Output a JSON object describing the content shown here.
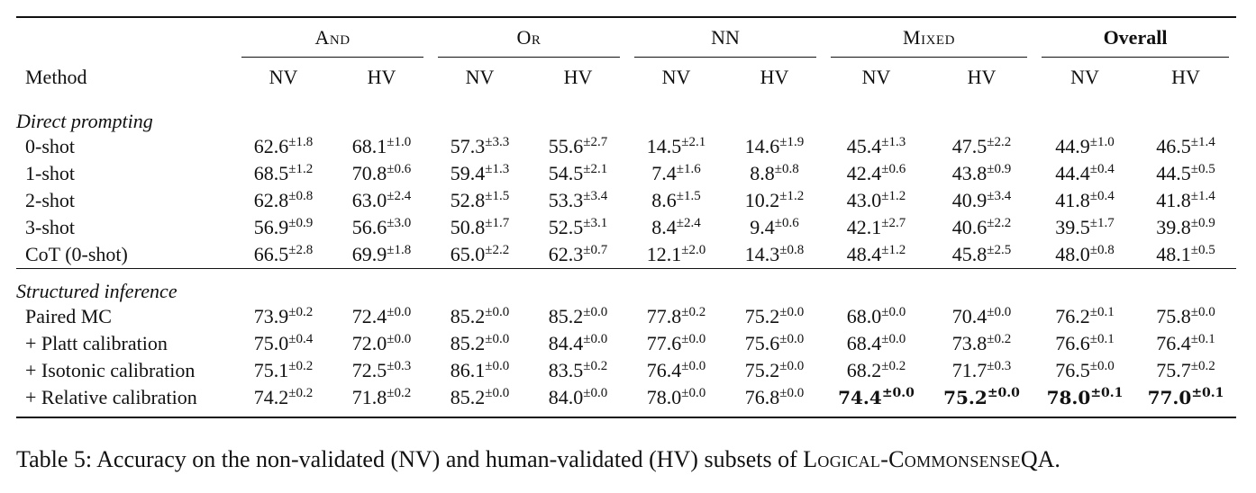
{
  "table": {
    "groups": [
      {
        "label": "And",
        "style": "sc"
      },
      {
        "label": "Or",
        "style": "sc"
      },
      {
        "label": "NN",
        "style": "plain"
      },
      {
        "label": "Mixed",
        "style": "sc"
      },
      {
        "label": "Overall",
        "style": "bold"
      }
    ],
    "method_header": "Method",
    "subheaders": [
      "NV",
      "HV",
      "NV",
      "HV",
      "NV",
      "HV",
      "NV",
      "HV",
      "NV",
      "HV"
    ],
    "sections": [
      {
        "title": "Direct prompting",
        "rows": [
          {
            "method": "0-shot",
            "cells": [
              {
                "v": "62.6",
                "sd": "±1.8"
              },
              {
                "v": "68.1",
                "sd": "±1.0"
              },
              {
                "v": "57.3",
                "sd": "±3.3"
              },
              {
                "v": "55.6",
                "sd": "±2.7"
              },
              {
                "v": "14.5",
                "sd": "±2.1"
              },
              {
                "v": "14.6",
                "sd": "±1.9"
              },
              {
                "v": "45.4",
                "sd": "±1.3"
              },
              {
                "v": "47.5",
                "sd": "±2.2"
              },
              {
                "v": "44.9",
                "sd": "±1.0"
              },
              {
                "v": "46.5",
                "sd": "±1.4"
              }
            ]
          },
          {
            "method": "1-shot",
            "cells": [
              {
                "v": "68.5",
                "sd": "±1.2"
              },
              {
                "v": "70.8",
                "sd": "±0.6"
              },
              {
                "v": "59.4",
                "sd": "±1.3"
              },
              {
                "v": "54.5",
                "sd": "±2.1"
              },
              {
                "v": "7.4",
                "sd": "±1.6"
              },
              {
                "v": "8.8",
                "sd": "±0.8"
              },
              {
                "v": "42.4",
                "sd": "±0.6"
              },
              {
                "v": "43.8",
                "sd": "±0.9"
              },
              {
                "v": "44.4",
                "sd": "±0.4"
              },
              {
                "v": "44.5",
                "sd": "±0.5"
              }
            ]
          },
          {
            "method": "2-shot",
            "cells": [
              {
                "v": "62.8",
                "sd": "±0.8"
              },
              {
                "v": "63.0",
                "sd": "±2.4"
              },
              {
                "v": "52.8",
                "sd": "±1.5"
              },
              {
                "v": "53.3",
                "sd": "±3.4"
              },
              {
                "v": "8.6",
                "sd": "±1.5"
              },
              {
                "v": "10.2",
                "sd": "±1.2"
              },
              {
                "v": "43.0",
                "sd": "±1.2"
              },
              {
                "v": "40.9",
                "sd": "±3.4"
              },
              {
                "v": "41.8",
                "sd": "±0.4"
              },
              {
                "v": "41.8",
                "sd": "±1.4"
              }
            ]
          },
          {
            "method": "3-shot",
            "cells": [
              {
                "v": "56.9",
                "sd": "±0.9"
              },
              {
                "v": "56.6",
                "sd": "±3.0"
              },
              {
                "v": "50.8",
                "sd": "±1.7"
              },
              {
                "v": "52.5",
                "sd": "±3.1"
              },
              {
                "v": "8.4",
                "sd": "±2.4"
              },
              {
                "v": "9.4",
                "sd": "±0.6"
              },
              {
                "v": "42.1",
                "sd": "±2.7"
              },
              {
                "v": "40.6",
                "sd": "±2.2"
              },
              {
                "v": "39.5",
                "sd": "±1.7"
              },
              {
                "v": "39.8",
                "sd": "±0.9"
              }
            ]
          },
          {
            "method": "CoT (0-shot)",
            "cells": [
              {
                "v": "66.5",
                "sd": "±2.8"
              },
              {
                "v": "69.9",
                "sd": "±1.8"
              },
              {
                "v": "65.0",
                "sd": "±2.2"
              },
              {
                "v": "62.3",
                "sd": "±0.7"
              },
              {
                "v": "12.1",
                "sd": "±2.0"
              },
              {
                "v": "14.3",
                "sd": "±0.8"
              },
              {
                "v": "48.4",
                "sd": "±1.2"
              },
              {
                "v": "45.8",
                "sd": "±2.5"
              },
              {
                "v": "48.0",
                "sd": "±0.8"
              },
              {
                "v": "48.1",
                "sd": "±0.5"
              }
            ]
          }
        ]
      },
      {
        "title": "Structured inference",
        "rows": [
          {
            "method": "Paired MC",
            "cells": [
              {
                "v": "73.9",
                "sd": "±0.2"
              },
              {
                "v": "72.4",
                "sd": "±0.0"
              },
              {
                "v": "85.2",
                "sd": "±0.0"
              },
              {
                "v": "85.2",
                "sd": "±0.0"
              },
              {
                "v": "77.8",
                "sd": "±0.2"
              },
              {
                "v": "75.2",
                "sd": "±0.0"
              },
              {
                "v": "68.0",
                "sd": "±0.0"
              },
              {
                "v": "70.4",
                "sd": "±0.0"
              },
              {
                "v": "76.2",
                "sd": "±0.1"
              },
              {
                "v": "75.8",
                "sd": "±0.0"
              }
            ]
          },
          {
            "method": "+ Platt calibration",
            "cells": [
              {
                "v": "75.0",
                "sd": "±0.4"
              },
              {
                "v": "72.0",
                "sd": "±0.0"
              },
              {
                "v": "85.2",
                "sd": "±0.0"
              },
              {
                "v": "84.4",
                "sd": "±0.0"
              },
              {
                "v": "77.6",
                "sd": "±0.0"
              },
              {
                "v": "75.6",
                "sd": "±0.0"
              },
              {
                "v": "68.4",
                "sd": "±0.0"
              },
              {
                "v": "73.8",
                "sd": "±0.2"
              },
              {
                "v": "76.6",
                "sd": "±0.1"
              },
              {
                "v": "76.4",
                "sd": "±0.1"
              }
            ]
          },
          {
            "method": "+ Isotonic calibration",
            "cells": [
              {
                "v": "75.1",
                "sd": "±0.2"
              },
              {
                "v": "72.5",
                "sd": "±0.3"
              },
              {
                "v": "86.1",
                "sd": "±0.0"
              },
              {
                "v": "83.5",
                "sd": "±0.2"
              },
              {
                "v": "76.4",
                "sd": "±0.0"
              },
              {
                "v": "75.2",
                "sd": "±0.0"
              },
              {
                "v": "68.2",
                "sd": "±0.2"
              },
              {
                "v": "71.7",
                "sd": "±0.3"
              },
              {
                "v": "76.5",
                "sd": "±0.0"
              },
              {
                "v": "75.7",
                "sd": "±0.2"
              }
            ]
          },
          {
            "method": "+ Relative calibration",
            "cells": [
              {
                "v": "74.2",
                "sd": "±0.2"
              },
              {
                "v": "71.8",
                "sd": "±0.2"
              },
              {
                "v": "85.2",
                "sd": "±0.0"
              },
              {
                "v": "84.0",
                "sd": "±0.0"
              },
              {
                "v": "78.0",
                "sd": "±0.0"
              },
              {
                "v": "76.8",
                "sd": "±0.0"
              },
              {
                "v": "74.4",
                "sd": "±0.0",
                "bold": true
              },
              {
                "v": "75.2",
                "sd": "±0.0",
                "bold": true
              },
              {
                "v": "78.0",
                "sd": "±0.1",
                "bold": true
              },
              {
                "v": "77.0",
                "sd": "±0.1",
                "bold": true
              }
            ]
          }
        ]
      }
    ]
  },
  "caption": {
    "prefix": "Table 5: Accuracy on the non-validated (NV) and human-validated (HV) subsets of ",
    "dataset_name": "Logical-Commonsense",
    "dataset_suffix": "QA",
    "end": "."
  }
}
